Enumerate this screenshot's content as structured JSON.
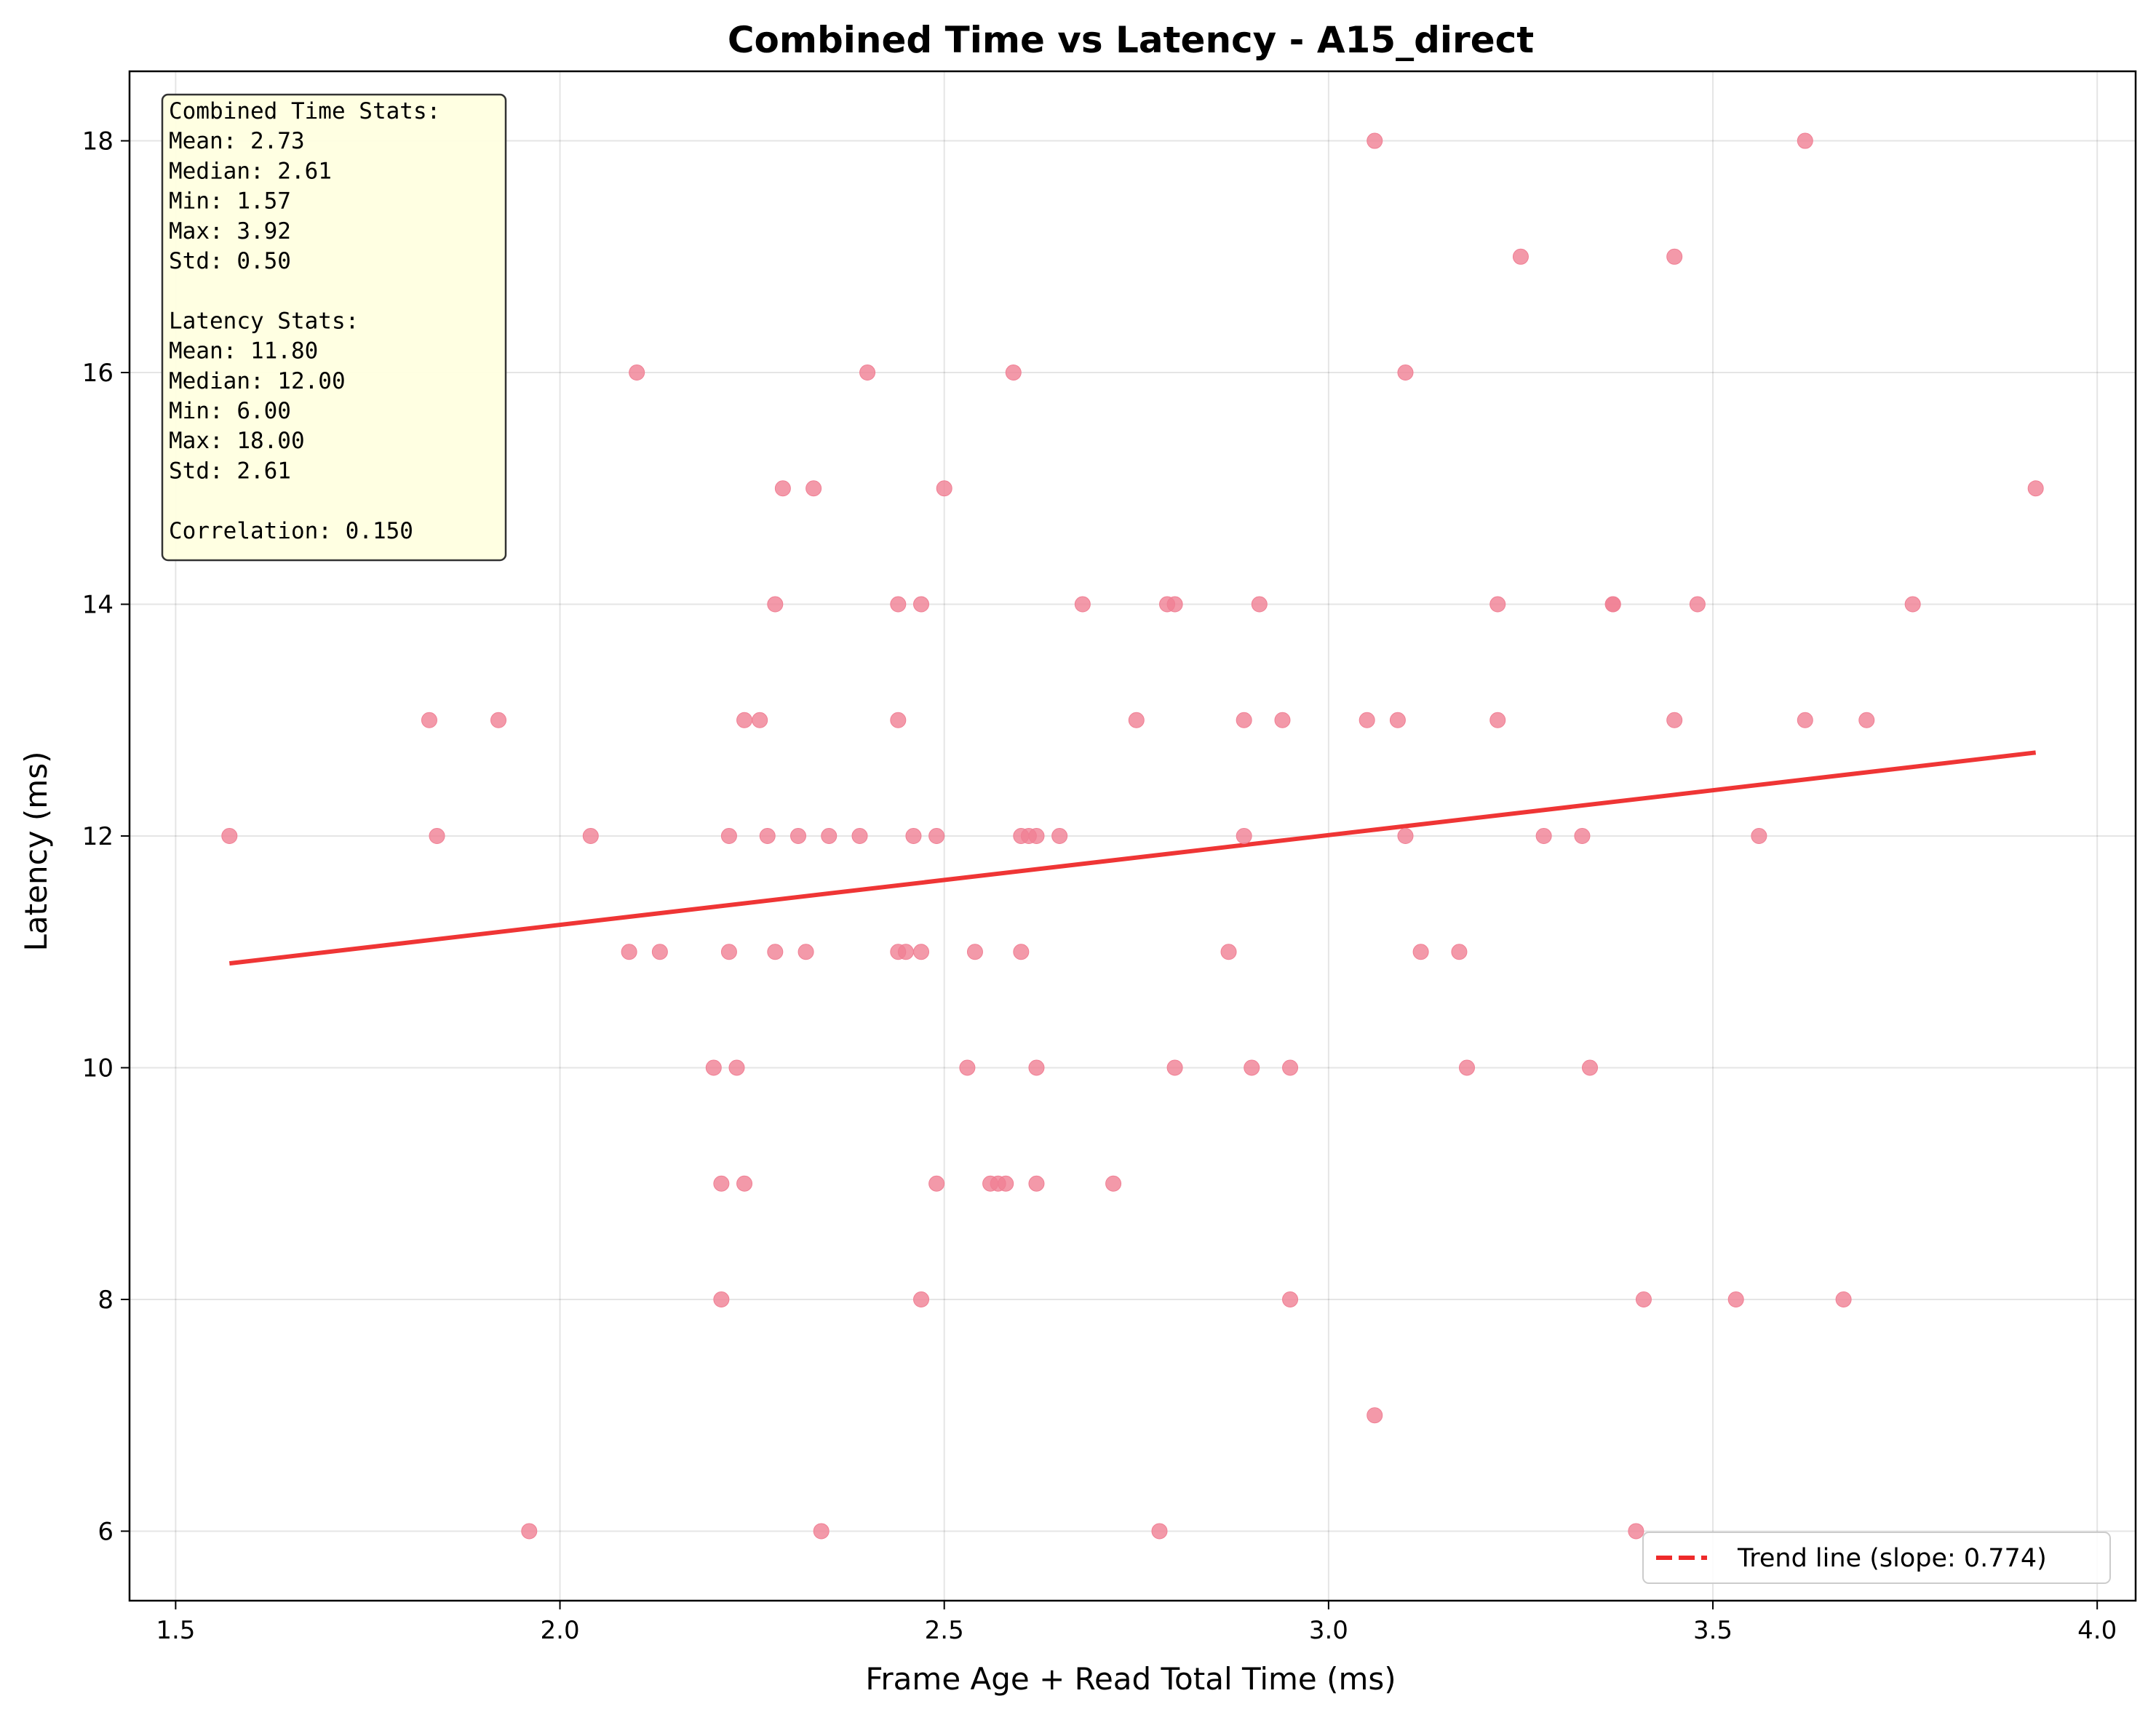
{
  "chart_data": {
    "type": "scatter",
    "title": "Combined Time vs Latency - A15_direct",
    "xlabel": "Frame Age + Read Total Time (ms)",
    "ylabel": "Latency (ms)",
    "xlim": [
      1.44,
      4.05
    ],
    "ylim": [
      5.4,
      18.6
    ],
    "xticks": [
      "1.5",
      "2.0",
      "2.5",
      "3.0",
      "3.5",
      "4.0"
    ],
    "yticks": [
      "6",
      "8",
      "10",
      "12",
      "14",
      "16",
      "18"
    ],
    "grid": true,
    "point_color": "#f07f94",
    "trend_color": "#ee2a2a",
    "points": [
      {
        "x": 1.57,
        "y": 12
      },
      {
        "x": 1.83,
        "y": 13
      },
      {
        "x": 1.84,
        "y": 12
      },
      {
        "x": 1.92,
        "y": 13
      },
      {
        "x": 1.96,
        "y": 6
      },
      {
        "x": 2.04,
        "y": 12
      },
      {
        "x": 2.09,
        "y": 11
      },
      {
        "x": 2.1,
        "y": 16
      },
      {
        "x": 2.13,
        "y": 11
      },
      {
        "x": 2.2,
        "y": 10
      },
      {
        "x": 2.21,
        "y": 9
      },
      {
        "x": 2.21,
        "y": 8
      },
      {
        "x": 2.22,
        "y": 12
      },
      {
        "x": 2.22,
        "y": 11
      },
      {
        "x": 2.23,
        "y": 10
      },
      {
        "x": 2.24,
        "y": 13
      },
      {
        "x": 2.24,
        "y": 9
      },
      {
        "x": 2.26,
        "y": 13
      },
      {
        "x": 2.27,
        "y": 12
      },
      {
        "x": 2.28,
        "y": 14
      },
      {
        "x": 2.28,
        "y": 11
      },
      {
        "x": 2.29,
        "y": 15
      },
      {
        "x": 2.31,
        "y": 12
      },
      {
        "x": 2.32,
        "y": 11
      },
      {
        "x": 2.33,
        "y": 15
      },
      {
        "x": 2.34,
        "y": 6
      },
      {
        "x": 2.35,
        "y": 12
      },
      {
        "x": 2.39,
        "y": 12
      },
      {
        "x": 2.4,
        "y": 16
      },
      {
        "x": 2.44,
        "y": 14
      },
      {
        "x": 2.44,
        "y": 13
      },
      {
        "x": 2.44,
        "y": 11
      },
      {
        "x": 2.45,
        "y": 11
      },
      {
        "x": 2.46,
        "y": 12
      },
      {
        "x": 2.47,
        "y": 11
      },
      {
        "x": 2.47,
        "y": 14
      },
      {
        "x": 2.47,
        "y": 8
      },
      {
        "x": 2.49,
        "y": 12
      },
      {
        "x": 2.49,
        "y": 9
      },
      {
        "x": 2.5,
        "y": 15
      },
      {
        "x": 2.53,
        "y": 10
      },
      {
        "x": 2.54,
        "y": 11
      },
      {
        "x": 2.56,
        "y": 9
      },
      {
        "x": 2.57,
        "y": 9
      },
      {
        "x": 2.58,
        "y": 9
      },
      {
        "x": 2.59,
        "y": 16
      },
      {
        "x": 2.6,
        "y": 12
      },
      {
        "x": 2.6,
        "y": 11
      },
      {
        "x": 2.61,
        "y": 12
      },
      {
        "x": 2.62,
        "y": 12
      },
      {
        "x": 2.62,
        "y": 10
      },
      {
        "x": 2.62,
        "y": 9
      },
      {
        "x": 2.65,
        "y": 12
      },
      {
        "x": 2.68,
        "y": 14
      },
      {
        "x": 2.72,
        "y": 9
      },
      {
        "x": 2.75,
        "y": 13
      },
      {
        "x": 2.78,
        "y": 6
      },
      {
        "x": 2.79,
        "y": 14
      },
      {
        "x": 2.8,
        "y": 14
      },
      {
        "x": 2.8,
        "y": 10
      },
      {
        "x": 2.87,
        "y": 11
      },
      {
        "x": 2.89,
        "y": 13
      },
      {
        "x": 2.89,
        "y": 12
      },
      {
        "x": 2.9,
        "y": 10
      },
      {
        "x": 2.91,
        "y": 14
      },
      {
        "x": 2.94,
        "y": 13
      },
      {
        "x": 2.95,
        "y": 10
      },
      {
        "x": 2.95,
        "y": 8
      },
      {
        "x": 3.05,
        "y": 13
      },
      {
        "x": 3.06,
        "y": 18
      },
      {
        "x": 3.06,
        "y": 7
      },
      {
        "x": 3.09,
        "y": 13
      },
      {
        "x": 3.1,
        "y": 16
      },
      {
        "x": 3.1,
        "y": 12
      },
      {
        "x": 3.12,
        "y": 11
      },
      {
        "x": 3.17,
        "y": 11
      },
      {
        "x": 3.18,
        "y": 10
      },
      {
        "x": 3.22,
        "y": 14
      },
      {
        "x": 3.22,
        "y": 13
      },
      {
        "x": 3.25,
        "y": 17
      },
      {
        "x": 3.28,
        "y": 12
      },
      {
        "x": 3.33,
        "y": 12
      },
      {
        "x": 3.34,
        "y": 10
      },
      {
        "x": 3.37,
        "y": 14
      },
      {
        "x": 3.37,
        "y": 14
      },
      {
        "x": 3.4,
        "y": 6
      },
      {
        "x": 3.41,
        "y": 8
      },
      {
        "x": 3.45,
        "y": 17
      },
      {
        "x": 3.45,
        "y": 13
      },
      {
        "x": 3.48,
        "y": 14
      },
      {
        "x": 3.53,
        "y": 8
      },
      {
        "x": 3.56,
        "y": 12
      },
      {
        "x": 3.62,
        "y": 18
      },
      {
        "x": 3.62,
        "y": 13
      },
      {
        "x": 3.67,
        "y": 8
      },
      {
        "x": 3.7,
        "y": 13
      },
      {
        "x": 3.76,
        "y": 14
      },
      {
        "x": 3.92,
        "y": 15
      }
    ],
    "trend_line": {
      "x": [
        1.57,
        3.92
      ],
      "y": [
        10.9,
        12.72
      ]
    },
    "legend": {
      "placement": "lower-right",
      "label": "Trend line (slope: 0.774)"
    },
    "stats_box": {
      "placement": "top-left",
      "lines": [
        "Combined Time Stats:",
        "Mean: 2.73",
        "Median: 2.61",
        "Min: 1.57",
        "Max: 3.92",
        "Std: 0.50",
        "",
        "Latency Stats:",
        "Mean: 11.80",
        "Median: 12.00",
        "Min: 6.00",
        "Max: 18.00",
        "Std: 2.61",
        "",
        "Correlation: 0.150"
      ]
    }
  }
}
